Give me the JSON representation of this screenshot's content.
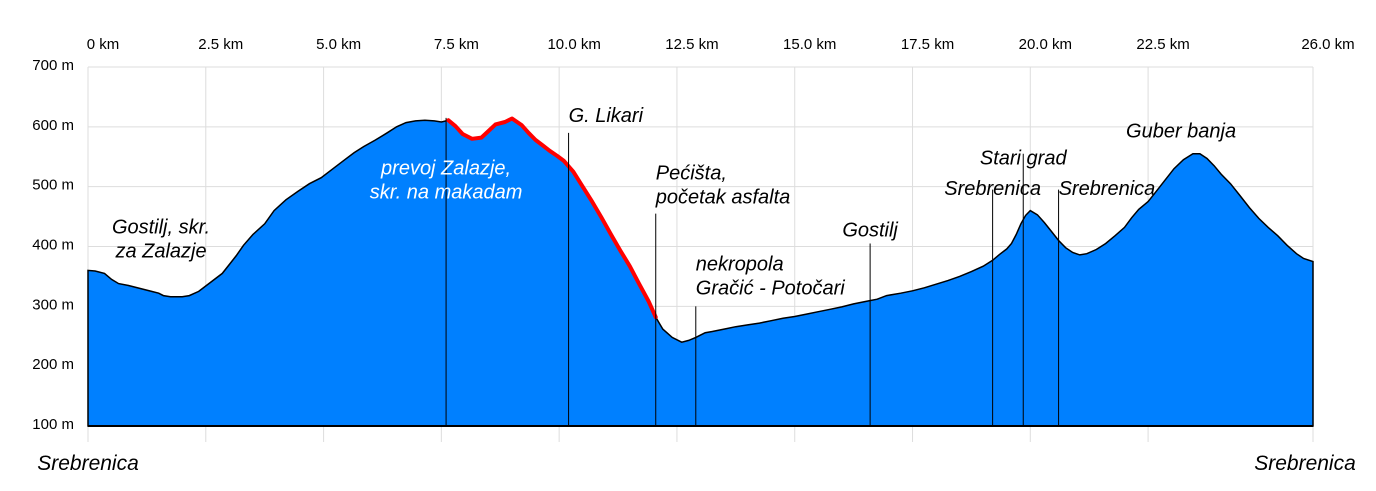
{
  "chart_data": {
    "type": "area",
    "title": "",
    "xlabel": "",
    "ylabel": "",
    "xlim": [
      0,
      26
    ],
    "ylim": [
      100,
      700
    ],
    "grid": true,
    "colors": {
      "fill": "#0080ff",
      "highlight": "#ff0000",
      "grid": "#dddddd",
      "axis": "#000000"
    },
    "x_ticks": [
      {
        "value": 0,
        "label": "0 km"
      },
      {
        "value": 2.5,
        "label": "2.5 km"
      },
      {
        "value": 5,
        "label": "5.0 km"
      },
      {
        "value": 7.5,
        "label": "7.5 km"
      },
      {
        "value": 10,
        "label": "10.0 km"
      },
      {
        "value": 12.5,
        "label": "12.5 km"
      },
      {
        "value": 15,
        "label": "15.0 km"
      },
      {
        "value": 17.5,
        "label": "17.5 km"
      },
      {
        "value": 20,
        "label": "20.0 km"
      },
      {
        "value": 22.5,
        "label": "22.5 km"
      },
      {
        "value": 26,
        "label": "26.0 km"
      }
    ],
    "y_ticks": [
      {
        "value": 100,
        "label": "100 m"
      },
      {
        "value": 200,
        "label": "200 m"
      },
      {
        "value": 300,
        "label": "300 m"
      },
      {
        "value": 400,
        "label": "400 m"
      },
      {
        "value": 500,
        "label": "500 m"
      },
      {
        "value": 600,
        "label": "600 m"
      },
      {
        "value": 700,
        "label": "700 m"
      }
    ],
    "series": [
      {
        "x": [
          0,
          0.15,
          0.35,
          0.5,
          0.65,
          0.85,
          1.1,
          1.35,
          1.5,
          1.6,
          1.75,
          2.0,
          2.15,
          2.35,
          2.6,
          2.85,
          3.05,
          3.15,
          3.3,
          3.5,
          3.75,
          3.95,
          4.2,
          4.45,
          4.7,
          4.95,
          5.2,
          5.45,
          5.65,
          5.85,
          6.1,
          6.35,
          6.55,
          6.75,
          6.95,
          7.15,
          7.35,
          7.5,
          7.65,
          7.8,
          7.95,
          8.15,
          8.35,
          8.5,
          8.65,
          8.85,
          9.0,
          9.2,
          9.35,
          9.5,
          9.65,
          9.8,
          9.95,
          10.1,
          10.3,
          10.5,
          10.7,
          10.9,
          11.1,
          11.3,
          11.5,
          11.7,
          11.9,
          12.05,
          12.2,
          12.4,
          12.6,
          12.75,
          12.9,
          13.0,
          13.1,
          13.25,
          13.5,
          13.75,
          14.0,
          14.25,
          14.5,
          14.75,
          15.0,
          15.25,
          15.5,
          15.75,
          16.0,
          16.25,
          16.5,
          16.75,
          16.95,
          17.25,
          17.5,
          17.75,
          18.0,
          18.25,
          18.5,
          18.75,
          19.0,
          19.2,
          19.35,
          19.5,
          19.6,
          19.7,
          19.8,
          19.9,
          20.0,
          20.15,
          20.3,
          20.45,
          20.6,
          20.75,
          20.9,
          21.05,
          21.2,
          21.4,
          21.6,
          21.8,
          22.0,
          22.15,
          22.3,
          22.5,
          22.65,
          22.85,
          23.05,
          23.25,
          23.45,
          23.6,
          23.75,
          23.9,
          24.05,
          24.25,
          24.45,
          24.65,
          24.85,
          25.05,
          25.25,
          25.45,
          25.65,
          25.8,
          26.0
        ],
        "values": [
          360,
          359,
          355,
          345,
          338,
          335,
          330,
          325,
          322,
          318,
          316,
          316,
          318,
          325,
          340,
          355,
          375,
          385,
          402,
          420,
          438,
          460,
          478,
          492,
          505,
          515,
          530,
          545,
          557,
          567,
          578,
          590,
          600,
          607,
          610,
          611,
          610,
          608,
          611,
          601,
          588,
          580,
          582,
          593,
          604,
          608,
          614,
          603,
          590,
          578,
          569,
          560,
          552,
          543,
          525,
          500,
          475,
          448,
          420,
          393,
          367,
          337,
          308,
          282,
          262,
          248,
          240,
          243,
          248,
          252,
          256,
          258,
          262,
          266,
          269,
          272,
          276,
          280,
          283,
          287,
          291,
          295,
          299,
          304,
          308,
          312,
          318,
          322,
          326,
          331,
          337,
          343,
          350,
          358,
          367,
          377,
          387,
          396,
          405,
          420,
          438,
          452,
          460,
          453,
          440,
          425,
          410,
          398,
          390,
          386,
          388,
          395,
          405,
          418,
          432,
          448,
          462,
          475,
          490,
          510,
          530,
          545,
          555,
          555,
          547,
          535,
          521,
          505,
          485,
          465,
          447,
          432,
          418,
          402,
          388,
          380,
          375
        ]
      }
    ],
    "highlight_segment": {
      "x_from": 7.65,
      "x_to": 12.1
    },
    "annotations": [
      {
        "x": 7.6,
        "y": 520,
        "lines": [
          "prevoj Zalazje,",
          "skr. na makadam"
        ],
        "marker_top": 615,
        "color": "white",
        "align": "middle"
      },
      {
        "x": 10.2,
        "y": 608,
        "lines": [
          "G. Likari"
        ],
        "marker_top": 590,
        "color": "black",
        "align": "start"
      },
      {
        "x": 12.05,
        "y": 512,
        "lines": [
          "Pećišta,",
          "početak asfalta"
        ],
        "marker_top": 455,
        "color": "black",
        "align": "start"
      },
      {
        "x": 12.9,
        "y": 360,
        "lines": [
          "nekropola",
          "Gračić - Potočari"
        ],
        "marker_top": 300,
        "color": "black",
        "align": "start"
      },
      {
        "x": 16.6,
        "y": 417,
        "lines": [
          "Gostilj"
        ],
        "marker_top": 405,
        "color": "black",
        "align": "middle"
      },
      {
        "x": 19.2,
        "y": 486,
        "lines": [
          "Srebrenica"
        ],
        "marker_top": 495,
        "color": "black",
        "align": "middle"
      },
      {
        "x": 19.85,
        "y": 537,
        "lines": [
          "Stari grad"
        ],
        "marker_top": 555,
        "color": "black",
        "align": "middle"
      },
      {
        "x": 20.6,
        "y": 486,
        "lines": [
          "Srebrenica"
        ],
        "marker_top": 495,
        "color": "black",
        "align": "start"
      },
      {
        "x": 23.2,
        "y": 582,
        "lines": [
          "Guber banja"
        ],
        "marker_top": null,
        "color": "black",
        "align": "middle"
      },
      {
        "x": 1.55,
        "y": 422,
        "lines": [
          "Gostilj, skr.",
          "za Zalazje"
        ],
        "marker_top": null,
        "color": "black",
        "align": "middle"
      }
    ],
    "endpoints": {
      "start": "Srebrenica",
      "end": "Srebrenica"
    }
  }
}
